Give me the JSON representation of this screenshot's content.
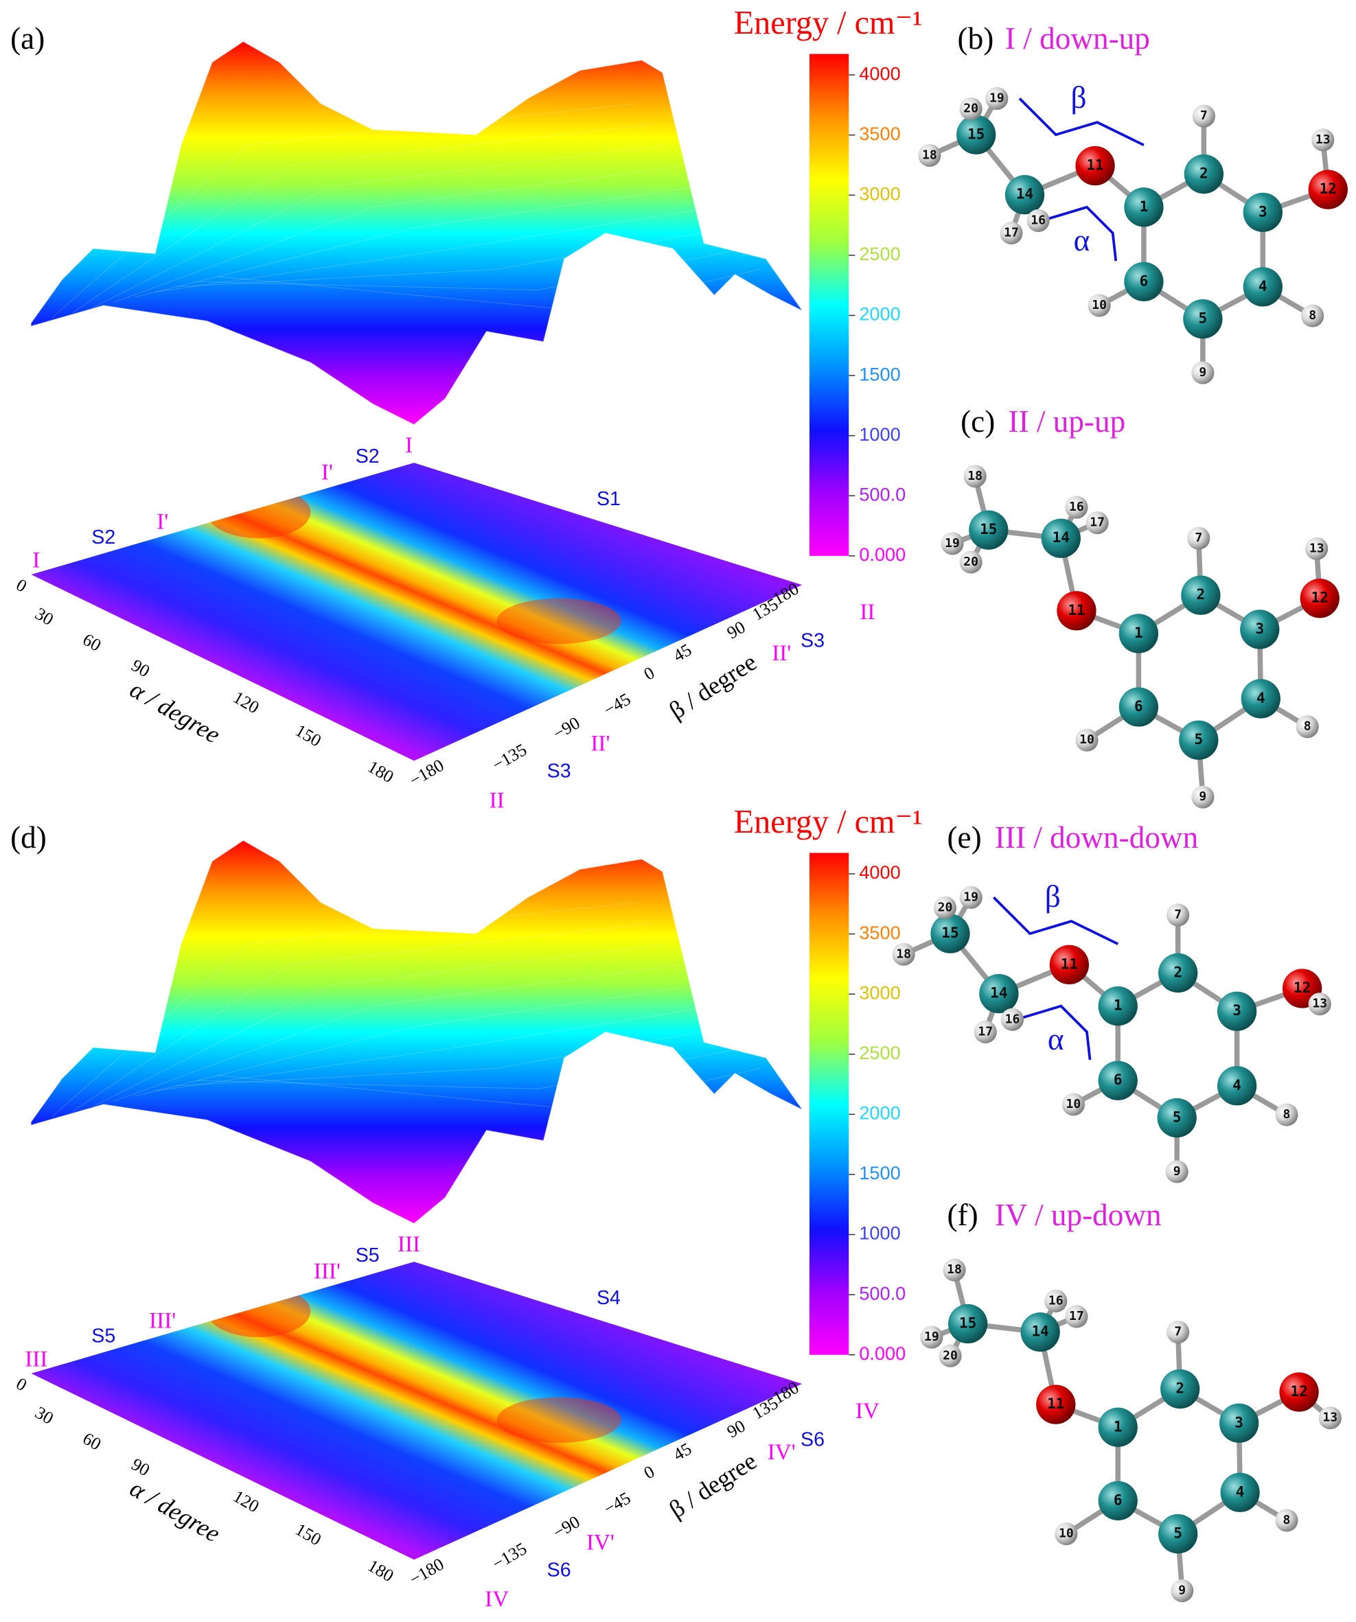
{
  "panels": [
    {
      "label": "(a)",
      "colorbar": {
        "title": "Energy / cm⁻¹",
        "ticks": [
          "0.000",
          "500.0",
          "1000",
          "1500",
          "2000",
          "2500",
          "3000",
          "3500",
          "4000"
        ]
      },
      "alpha_axis": {
        "label": "α / degree",
        "ticks": [
          "0",
          "30",
          "60",
          "90",
          "120",
          "150",
          "180"
        ]
      },
      "beta_axis": {
        "label": "β / degree",
        "ticks": [
          "−180",
          "−135",
          "−90",
          "−45",
          "0",
          "45",
          "90",
          "135",
          "180"
        ]
      },
      "annotations": [
        "I",
        "S2",
        "I'",
        "S1",
        "S2",
        "I'",
        "I",
        "II",
        "S3",
        "II'",
        "II'",
        "S3",
        "II"
      ]
    },
    {
      "label": "(d)",
      "colorbar": {
        "title": "Energy / cm⁻¹",
        "ticks": [
          "0.000",
          "500.0",
          "1000",
          "1500",
          "2000",
          "2500",
          "3000",
          "3500",
          "4000"
        ]
      },
      "alpha_axis": {
        "label": "α / degree",
        "ticks": [
          "0",
          "30",
          "60",
          "90",
          "120",
          "150",
          "180"
        ]
      },
      "beta_axis": {
        "label": "β / degree",
        "ticks": [
          "−180",
          "−135",
          "−90",
          "−45",
          "0",
          "45",
          "90",
          "135",
          "180"
        ]
      },
      "annotations": [
        "III",
        "S5",
        "III'",
        "S4",
        "S5",
        "III'",
        "III",
        "IV",
        "S6",
        "IV'",
        "IV'",
        "S6",
        "IV"
      ]
    }
  ],
  "structures": [
    {
      "label": "(b)",
      "title": "I / down-up",
      "atoms": [
        "1",
        "2",
        "3",
        "4",
        "5",
        "6",
        "7",
        "8",
        "9",
        "10",
        "11",
        "12",
        "13",
        "14",
        "15",
        "16",
        "17",
        "18",
        "19",
        "20"
      ],
      "angles": [
        "α",
        "β"
      ]
    },
    {
      "label": "(c)",
      "title": "II / up-up",
      "atoms": [
        "1",
        "2",
        "3",
        "4",
        "5",
        "6",
        "7",
        "8",
        "9",
        "10",
        "11",
        "12",
        "13",
        "14",
        "15",
        "16",
        "17",
        "18",
        "19",
        "20"
      ]
    },
    {
      "label": "(e)",
      "title": "III / down-down",
      "atoms": [
        "1",
        "2",
        "3",
        "4",
        "5",
        "6",
        "7",
        "8",
        "9",
        "10",
        "11",
        "12",
        "13",
        "14",
        "15",
        "16",
        "17",
        "18",
        "19",
        "20"
      ],
      "angles": [
        "α",
        "β"
      ]
    },
    {
      "label": "(f)",
      "title": "IV / up-down",
      "atoms": [
        "1",
        "2",
        "3",
        "4",
        "5",
        "6",
        "7",
        "8",
        "9",
        "10",
        "11",
        "12",
        "13",
        "14",
        "15",
        "16",
        "17",
        "18",
        "19",
        "20"
      ]
    }
  ]
}
